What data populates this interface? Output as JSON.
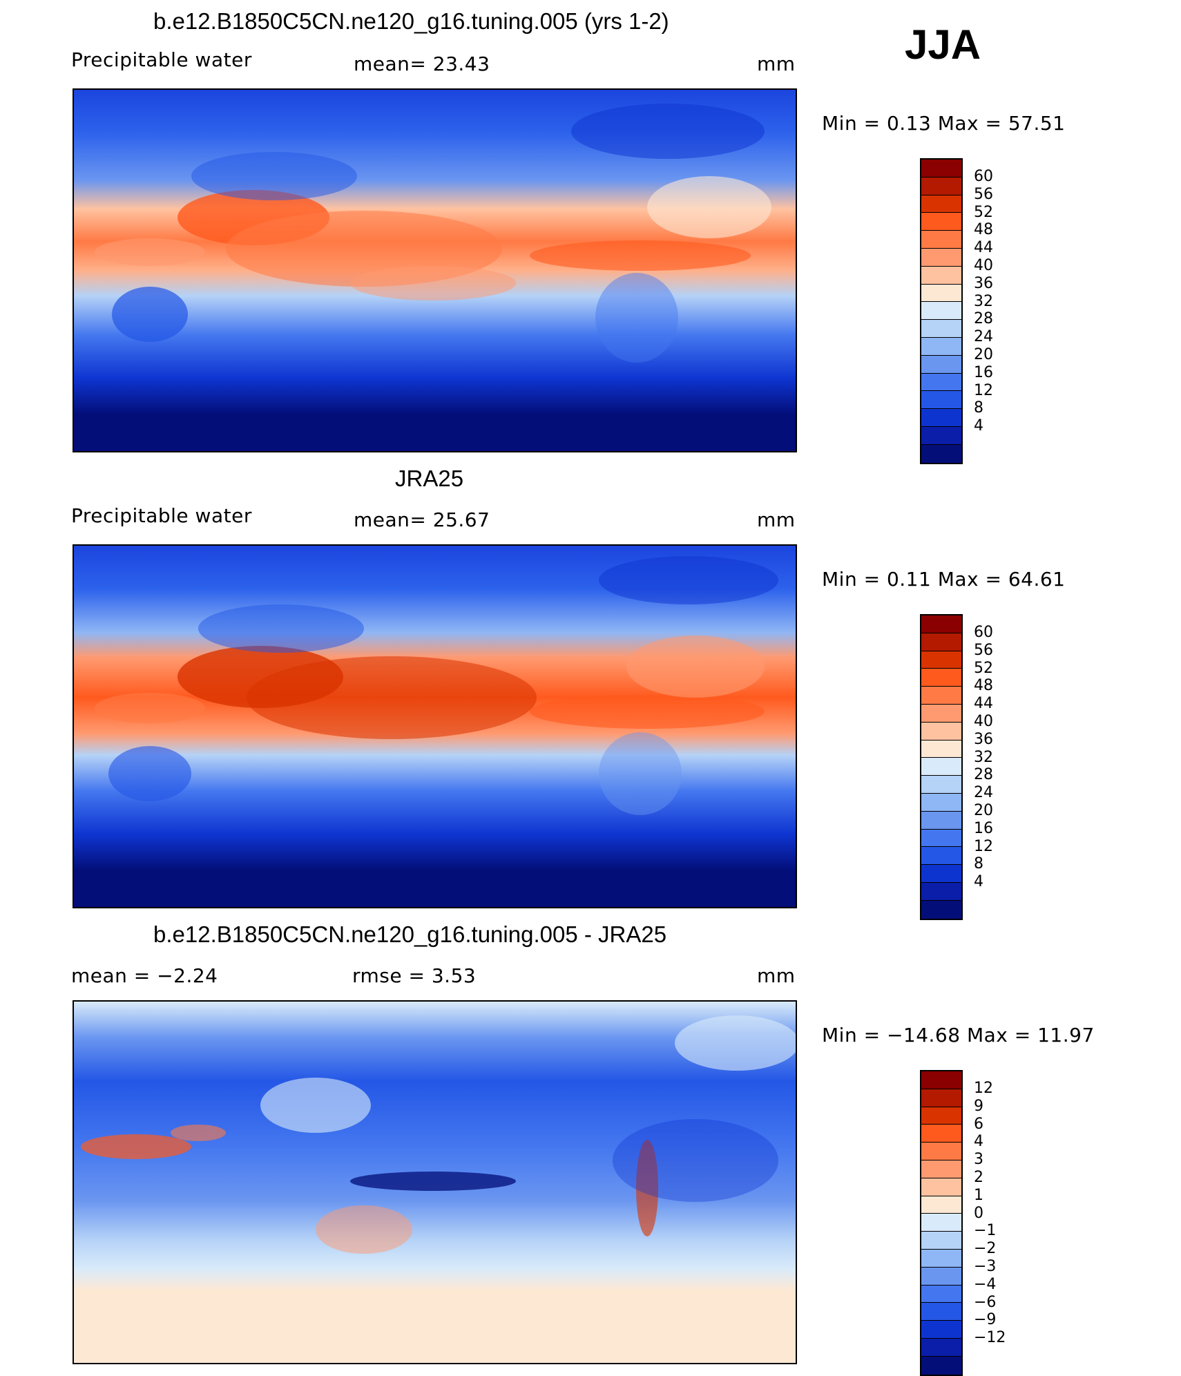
{
  "season": "JJA",
  "panels": [
    {
      "title": "b.e12.B1850C5CN.ne120_g16.tuning.005 (yrs 1-2)",
      "left": "Precipitable  water",
      "center": "mean=   23.43",
      "right": "mm",
      "minmax": "Min  =     0.13  Max  =    57.51"
    },
    {
      "title": "JRA25",
      "left": "Precipitable  water",
      "center": "mean=   25.67",
      "right": "mm",
      "minmax": "Min  =     0.11  Max  =    64.61"
    },
    {
      "title": "b.e12.B1850C5CN.ne120_g16.tuning.005 - JRA25",
      "left": "mean  =    −2.24",
      "center": "rmse  =     3.53",
      "right": "mm",
      "minmax": "Min  = −14.68  Max  =    11.97"
    }
  ],
  "colorbars": {
    "abs_colors": [
      "#8b0000",
      "#b31a00",
      "#d93300",
      "#ff5a1e",
      "#ff7a45",
      "#ff9a70",
      "#ffc2a0",
      "#fde8d4",
      "#d9ebfa",
      "#b5d2f7",
      "#8fb6f5",
      "#6a96f0",
      "#4477ef",
      "#2457e6",
      "#0e34d0",
      "#0a1eaa",
      "#030e78"
    ],
    "abs_labels": [
      "60",
      "56",
      "52",
      "48",
      "44",
      "40",
      "36",
      "32",
      "28",
      "24",
      "20",
      "16",
      "12",
      "8",
      "4"
    ],
    "diff_colors": [
      "#8b0000",
      "#b31a00",
      "#d93300",
      "#ff5a1e",
      "#ff7a45",
      "#ff9a70",
      "#ffc2a0",
      "#fde8d4",
      "#d9ebfa",
      "#b5d2f7",
      "#8fb6f5",
      "#6a96f0",
      "#4477ef",
      "#2457e6",
      "#0e34d0",
      "#0a1eaa",
      "#030e78"
    ],
    "diff_labels": [
      "12",
      "9",
      "6",
      "4",
      "3",
      "2",
      "1",
      "0",
      "−1",
      "−2",
      "−3",
      "−4",
      "−6",
      "−9",
      "−12"
    ]
  }
}
